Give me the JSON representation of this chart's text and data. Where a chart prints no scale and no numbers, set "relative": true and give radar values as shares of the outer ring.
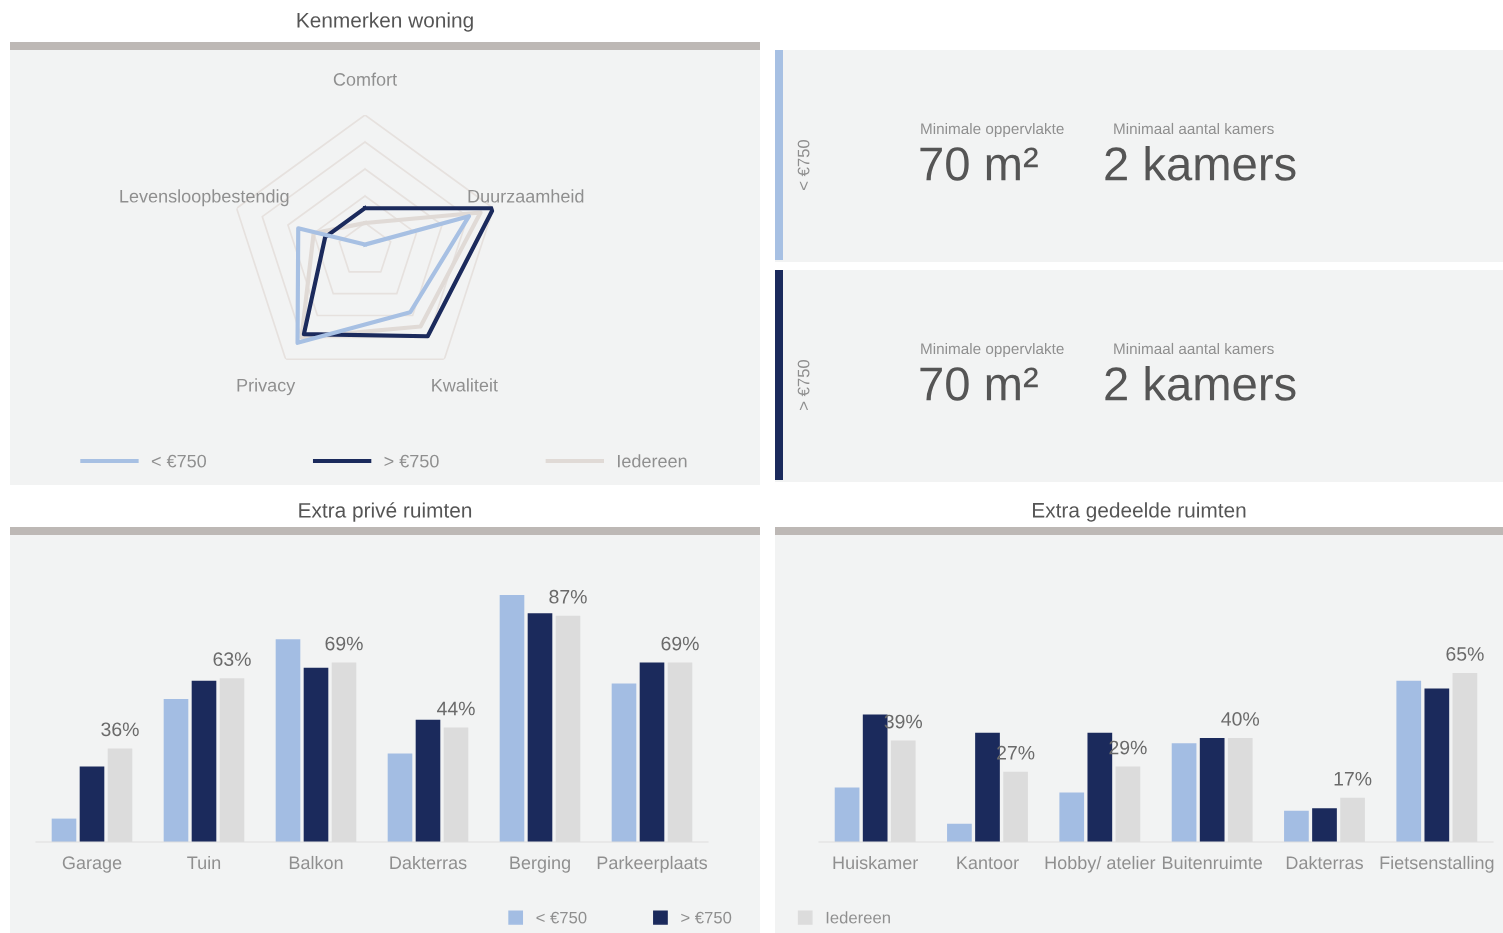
{
  "chart_data": [
    {
      "type": "radar",
      "title": "Kenmerken woning",
      "categories": [
        "Comfort",
        "Duurzaamheid",
        "Kwaliteit",
        "Privacy",
        "Levensloopbestendig"
      ],
      "relative": true,
      "legend": "bottom",
      "series": [
        {
          "name": "< €750",
          "color": "#a7c0e3",
          "values": [
            0.04,
            0.81,
            0.57,
            0.85,
            0.52
          ]
        },
        {
          "name": "> €750",
          "color": "#1b2a5c",
          "values": [
            0.31,
            1.0,
            0.79,
            0.77,
            0.31
          ]
        },
        {
          "name": "Iedereen",
          "color": "#e0dad6",
          "values": [
            0.2,
            0.9,
            0.7,
            0.8,
            0.4
          ]
        }
      ]
    },
    {
      "type": "other",
      "title": "< €750",
      "colors": [
        "#a7c0e3"
      ],
      "annotations": [
        "Minimale oppervlakte",
        "70 m²",
        "Minimaal aantal kamers",
        "2 kamers"
      ]
    },
    {
      "type": "other",
      "title": "> €750",
      "colors": [
        "#1b2a5c"
      ],
      "annotations": [
        "Minimale oppervlakte",
        "70 m²",
        "Minimaal aantal kamers",
        "2 kamers"
      ]
    },
    {
      "type": "bar",
      "title": "Extra privé ruimten",
      "categories": [
        "Garage",
        "Tuin",
        "Balkon",
        "Dakterras",
        "Berging",
        "Parkeerplaats"
      ],
      "tick_labels": "x",
      "legend": "bottom",
      "series": [
        {
          "name": "< €750",
          "color": "#a3bde3",
          "values": [
            9,
            55,
            78,
            34,
            95,
            61
          ]
        },
        {
          "name": "> €750",
          "color": "#1b2a5c",
          "values": [
            29,
            62,
            67,
            47,
            88,
            69
          ]
        },
        {
          "name": "Iedereen",
          "color": "#dcdcdc",
          "values": [
            36,
            63,
            69,
            44,
            87,
            69
          ],
          "value_labels": [
            "36%",
            "63%",
            "69%",
            "44%",
            "87%",
            "69%"
          ]
        }
      ]
    },
    {
      "type": "bar",
      "title": "Extra gedeelde ruimten",
      "categories": [
        "Huiskamer",
        "Kantoor",
        "Hobby/ atelier",
        "Buitenruimte",
        "Dakterras",
        "Fietsenstalling"
      ],
      "tick_labels": "x",
      "series": [
        {
          "color": "#a3bde3",
          "values": [
            21,
            7,
            19,
            38,
            12,
            62
          ]
        },
        {
          "color": "#1b2a5c",
          "values": [
            49,
            42,
            42,
            40,
            13,
            59
          ]
        },
        {
          "color": "#dcdcdc",
          "values": [
            39,
            27,
            29,
            40,
            17,
            65
          ],
          "value_labels": [
            "39%",
            "27%",
            "29%",
            "40%",
            "17%",
            "65%"
          ]
        }
      ]
    }
  ]
}
